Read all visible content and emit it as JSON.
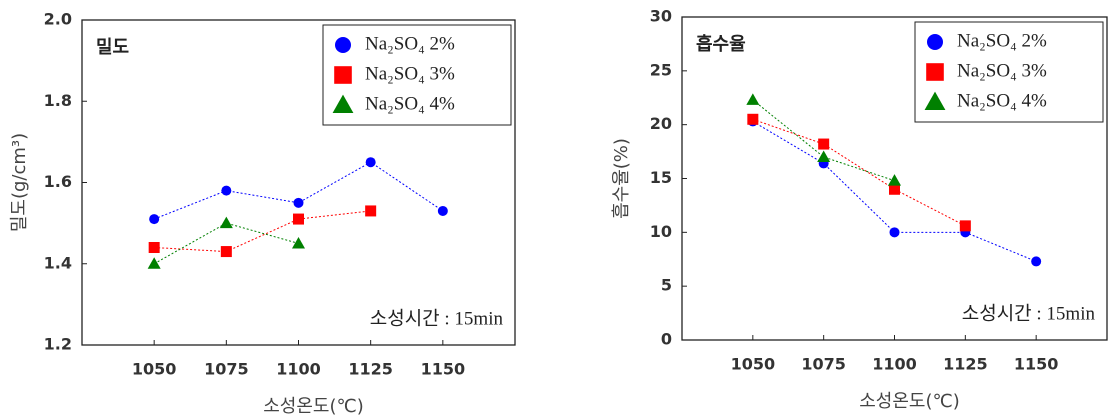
{
  "chart_data": [
    {
      "type": "line",
      "title": "밀도",
      "xlabel": "소성온도(℃)",
      "ylabel": "밀도(g/cm³)",
      "annotation": "소성시간 : 15min",
      "x": [
        1050,
        1075,
        1100,
        1125,
        1150
      ],
      "xlim": [
        1025,
        1175
      ],
      "xticks": [
        1050,
        1075,
        1100,
        1125,
        1150
      ],
      "ylim": [
        1.2,
        2.0
      ],
      "yticks": [
        1.2,
        1.4,
        1.6,
        1.8,
        {
          "value": 2.0,
          "label": "2.0"
        }
      ],
      "legend": "upper right",
      "series": [
        {
          "name": "Na₂SO₄ 2%",
          "color": "#0000ff",
          "marker": "circle",
          "values": [
            1.51,
            1.58,
            1.55,
            1.65,
            1.53
          ]
        },
        {
          "name": "Na₂SO₄ 3%",
          "color": "#ff0000",
          "marker": "square",
          "values": [
            1.44,
            1.43,
            1.51,
            1.53,
            null
          ]
        },
        {
          "name": "Na₂SO₄ 4%",
          "color": "#008000",
          "marker": "triangle",
          "values": [
            1.4,
            1.5,
            1.45,
            null,
            null
          ]
        }
      ]
    },
    {
      "type": "line",
      "title": "흡수율",
      "xlabel": "소성온도(℃)",
      "ylabel": "흡수율(%)",
      "annotation": "소성시간 : 15min",
      "x": [
        1050,
        1075,
        1100,
        1125,
        1150
      ],
      "xlim": [
        1025,
        1175
      ],
      "xticks": [
        1050,
        1075,
        1100,
        1125,
        1150
      ],
      "ylim": [
        0,
        30
      ],
      "yticks": [
        0,
        5,
        10,
        15,
        20,
        25,
        30
      ],
      "legend": "upper right",
      "series": [
        {
          "name": "Na₂SO₄ 2%",
          "color": "#0000ff",
          "marker": "circle",
          "values": [
            20.3,
            16.4,
            10,
            10,
            7.3
          ]
        },
        {
          "name": "Na₂SO₄ 3%",
          "color": "#ff0000",
          "marker": "square",
          "values": [
            20.5,
            18.2,
            14.0,
            10.6,
            null
          ]
        },
        {
          "name": "Na₂SO₄ 4%",
          "color": "#008000",
          "marker": "triangle",
          "values": [
            22.3,
            17.0,
            14.8,
            null,
            null
          ]
        }
      ]
    }
  ]
}
